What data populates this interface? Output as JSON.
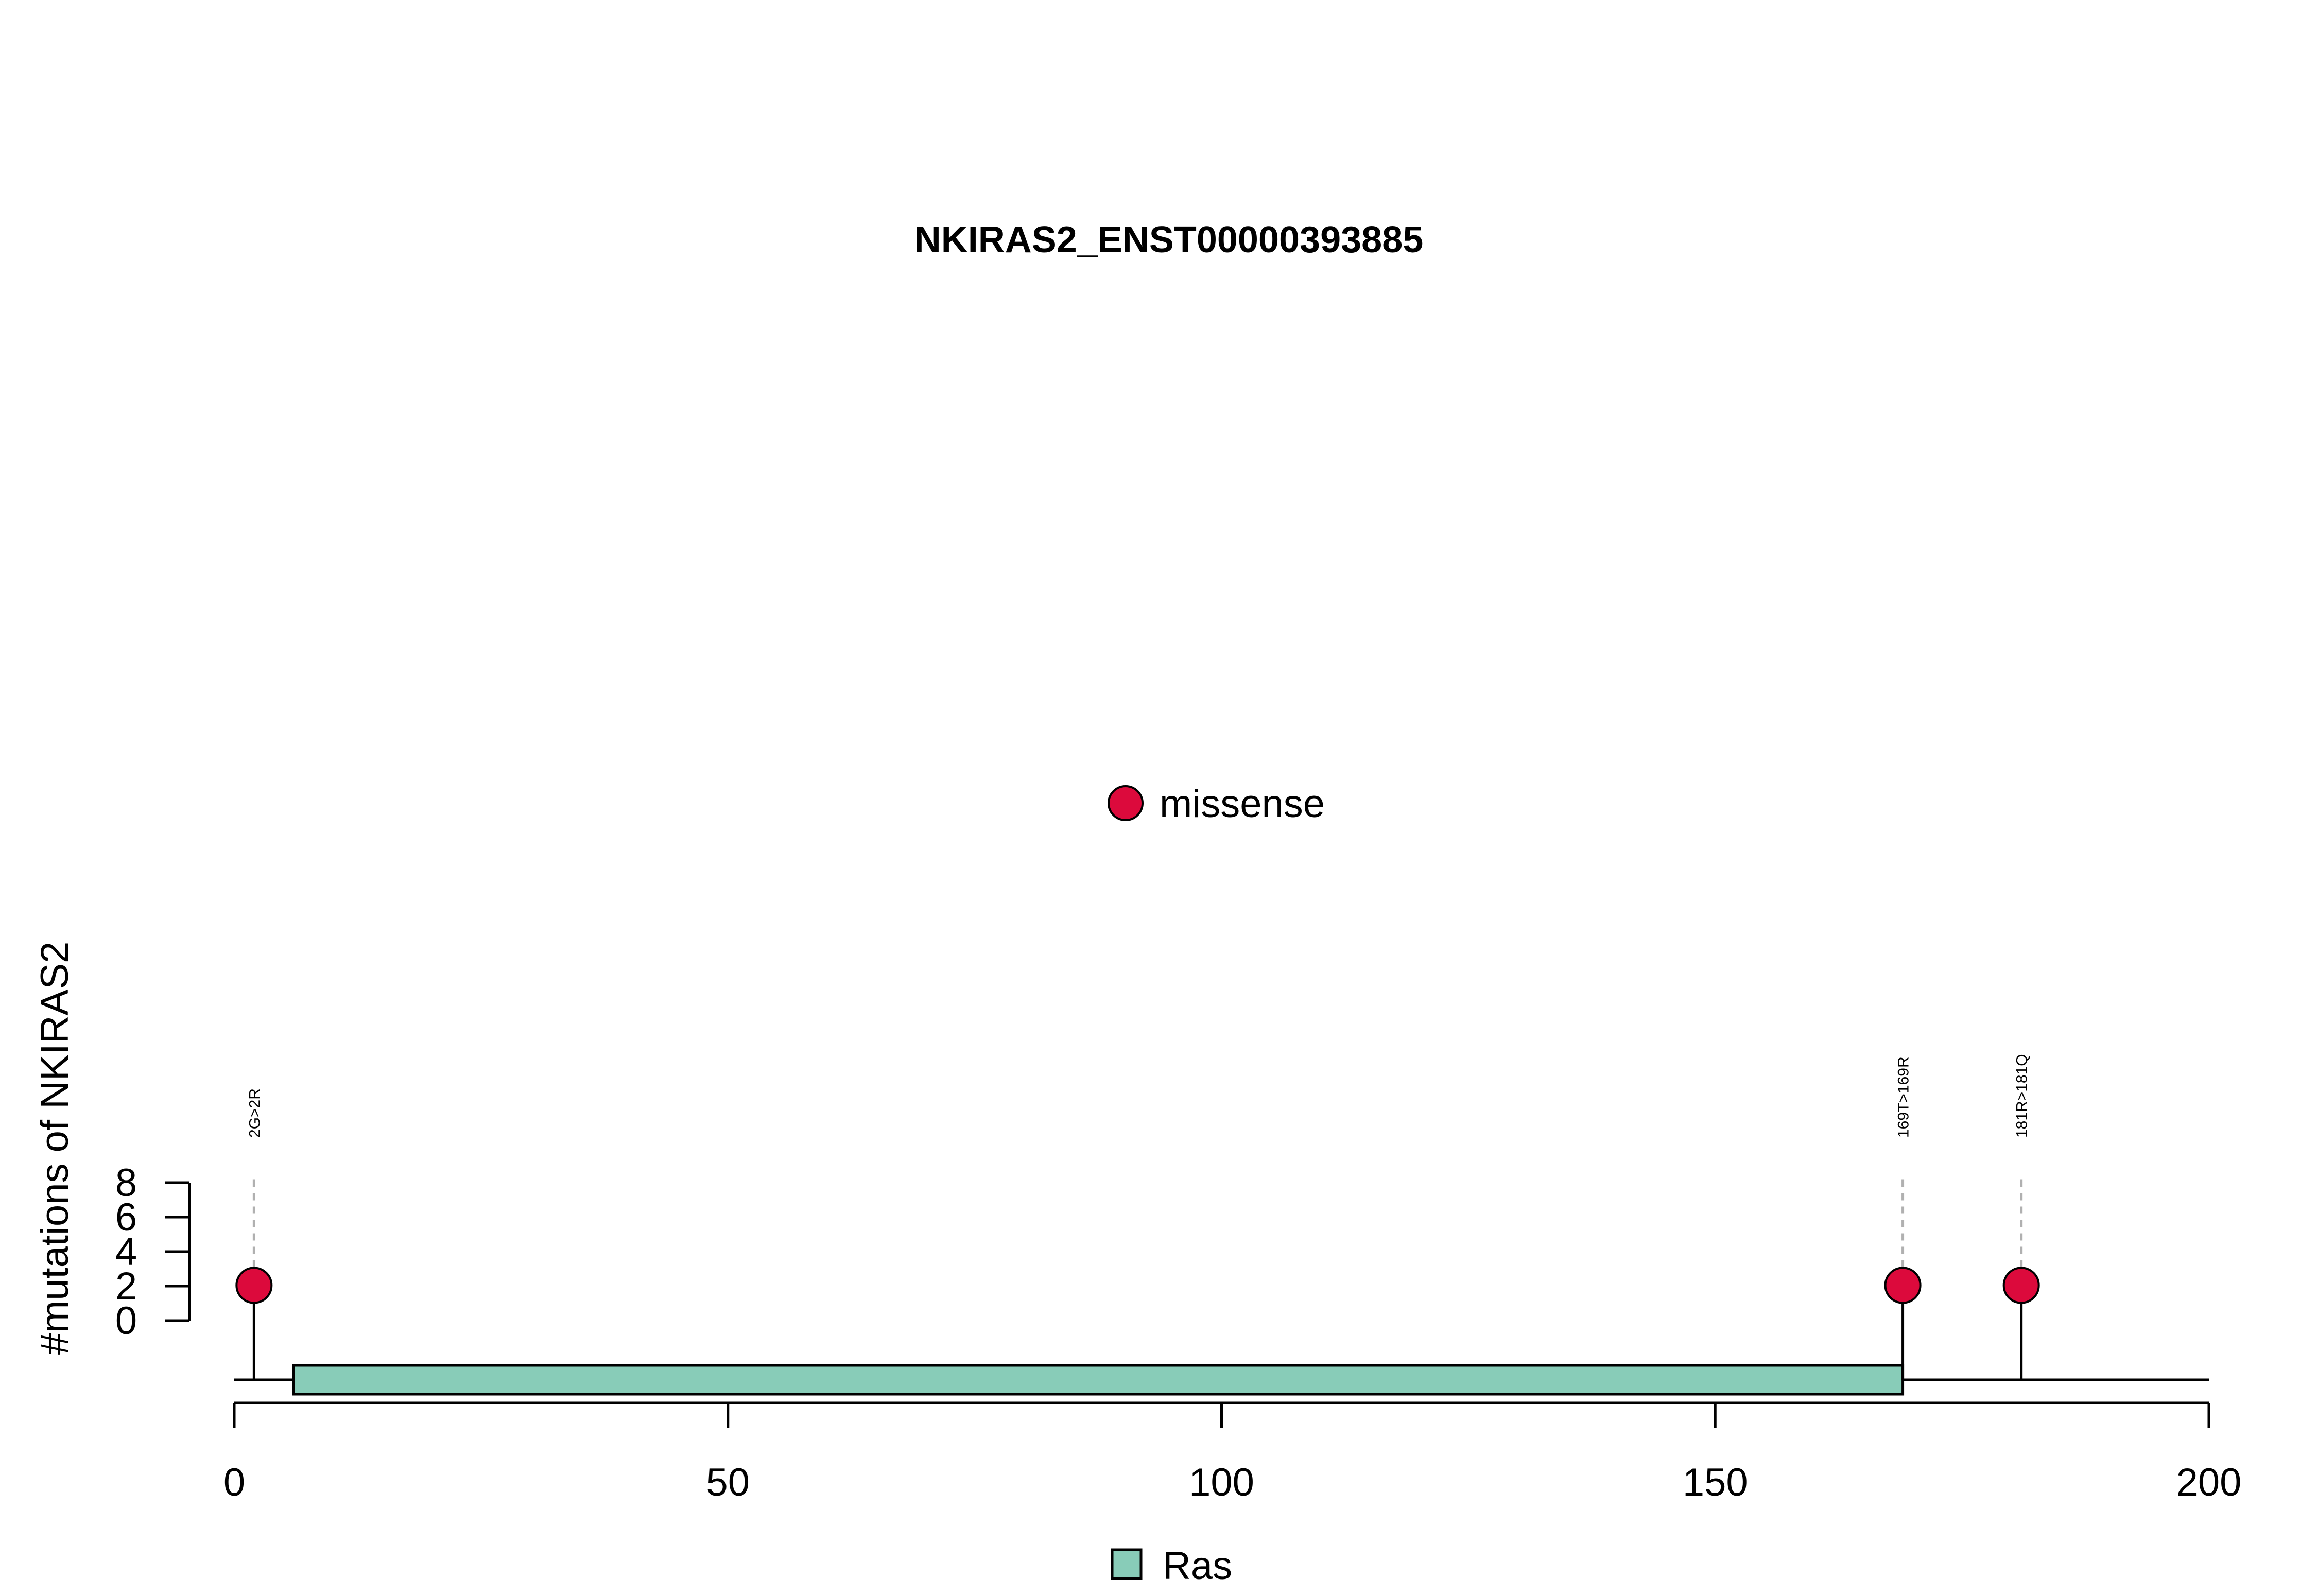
{
  "chart_data": {
    "type": "lollipop",
    "title": "NKIRAS2_ENST00000393885",
    "ylabel": "#mutations of NKIRAS2",
    "xlabel": "",
    "xlim": [
      0,
      200
    ],
    "x_ticks": [
      0,
      50,
      100,
      150,
      200
    ],
    "y_ticks": [
      0,
      2,
      4,
      6,
      8
    ],
    "ylim": [
      0,
      8
    ],
    "protein_length": 200,
    "domains": [
      {
        "name": "Ras",
        "start": 6,
        "end": 169,
        "color": "#88ccb8"
      }
    ],
    "mutations": [
      {
        "label": "2G>2R",
        "position": 2,
        "count": 1,
        "type": "missense"
      },
      {
        "label": "169T>169R",
        "position": 169,
        "count": 1,
        "type": "missense"
      },
      {
        "label": "181R>181Q",
        "position": 181,
        "count": 1,
        "type": "missense"
      }
    ],
    "mutation_legend": [
      {
        "label": "missense",
        "color": "#dc0a3c"
      }
    ],
    "domain_legend": [
      {
        "label": "Ras",
        "color": "#88ccb8"
      }
    ]
  }
}
